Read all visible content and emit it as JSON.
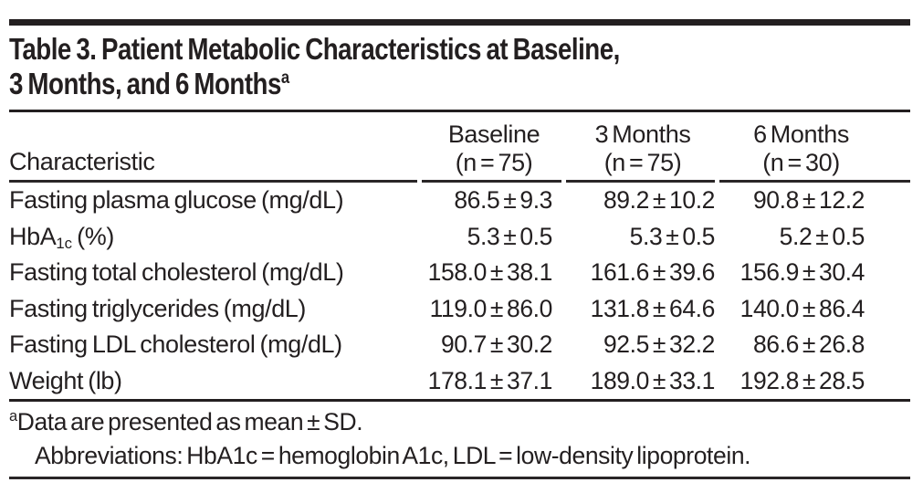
{
  "title": {
    "line1": "Table 3. Patient Metabolic Characteristics at Baseline,",
    "line2": "3 Months, and 6 Months",
    "superscript": "a"
  },
  "table": {
    "row_header_label": "Characteristic",
    "columns": [
      {
        "line1": "Baseline",
        "line2": "(n = 75)"
      },
      {
        "line1": "3 Months",
        "line2": "(n = 75)"
      },
      {
        "line1": "6 Months",
        "line2": "(n = 30)"
      }
    ],
    "rows": [
      {
        "label": "Fasting plasma glucose (mg/dL)",
        "values": [
          "86.5 ± 9.3",
          "89.2 ± 10.2",
          "90.8 ± 12.2"
        ]
      },
      {
        "label_pre": "HbA",
        "label_sub": "1c",
        "label_post": " (%)",
        "values": [
          "5.3 ± 0.5",
          "5.3 ± 0.5",
          "5.2 ± 0.5"
        ]
      },
      {
        "label": "Fasting total cholesterol (mg/dL)",
        "values": [
          "158.0 ± 38.1",
          "161.6 ± 39.6",
          "156.9 ± 30.4"
        ]
      },
      {
        "label": "Fasting triglycerides (mg/dL)",
        "values": [
          "119.0 ± 86.0",
          "131.8 ± 64.6",
          "140.0 ± 86.4"
        ]
      },
      {
        "label": "Fasting LDL cholesterol (mg/dL)",
        "values": [
          "90.7 ± 30.2",
          "92.5 ± 32.2",
          "86.6 ± 26.8"
        ]
      },
      {
        "label": "Weight (lb)",
        "values": [
          "178.1 ± 37.1",
          "189.0 ± 33.1",
          "192.8 ± 28.5"
        ]
      }
    ]
  },
  "footnotes": {
    "marker": "a",
    "line1": "Data are presented as mean ± SD.",
    "line2": "Abbreviations: HbA1c = hemoglobin A1c, LDL = low-density lipoprotein."
  },
  "colors": {
    "text": "#231f20",
    "rule": "#231f20",
    "background": "#ffffff"
  }
}
